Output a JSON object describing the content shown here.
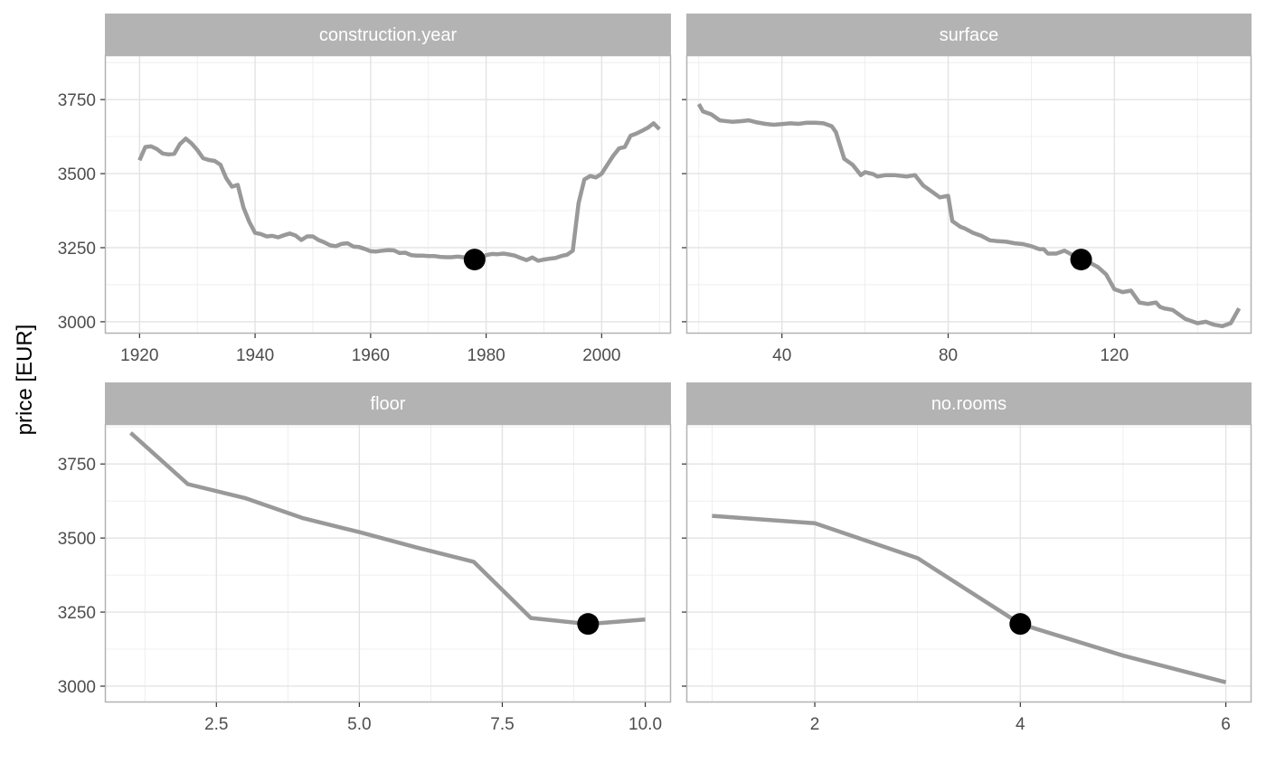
{
  "y_axis_label": "price [EUR]",
  "colors": {
    "line": "#999999",
    "point": "#000000",
    "strip": "#b3b3b3",
    "grid": "#ebebeb",
    "border": "#b3b3b3"
  },
  "chart_data": [
    {
      "type": "line",
      "title": "construction.year",
      "xlim": [
        1914,
        2012
      ],
      "ylim": [
        2960,
        3900
      ],
      "x_ticks": [
        1920,
        1940,
        1960,
        1980,
        2000
      ],
      "x_tick_labels": [
        "1920",
        "1940",
        "1960",
        "1980",
        "2000"
      ],
      "y_ticks": [
        3000,
        3250,
        3500,
        3750
      ],
      "y_tick_labels": [
        "3000",
        "3250",
        "3500",
        "3750"
      ],
      "x": [
        1920,
        1921,
        1922,
        1923,
        1924,
        1925,
        1926,
        1927,
        1928,
        1929,
        1930,
        1931,
        1932,
        1933,
        1934,
        1935,
        1936,
        1937,
        1938,
        1939,
        1940,
        1941,
        1942,
        1943,
        1944,
        1945,
        1946,
        1947,
        1948,
        1949,
        1950,
        1951,
        1952,
        1953,
        1954,
        1955,
        1956,
        1957,
        1958,
        1959,
        1960,
        1961,
        1962,
        1963,
        1964,
        1965,
        1966,
        1967,
        1968,
        1969,
        1970,
        1971,
        1972,
        1973,
        1974,
        1975,
        1976,
        1977,
        1978,
        1979,
        1980,
        1981,
        1982,
        1983,
        1984,
        1985,
        1986,
        1987,
        1988,
        1989,
        1990,
        1991,
        1992,
        1993,
        1994,
        1995,
        1996,
        1997,
        1998,
        1999,
        2000,
        2001,
        2002,
        2003,
        2004,
        2005,
        2006,
        2007,
        2008,
        2009,
        2010
      ],
      "values": [
        3545,
        3590,
        3592,
        3583,
        3568,
        3565,
        3567,
        3600,
        3618,
        3602,
        3580,
        3552,
        3546,
        3543,
        3530,
        3485,
        3456,
        3462,
        3385,
        3337,
        3300,
        3296,
        3288,
        3290,
        3285,
        3292,
        3298,
        3291,
        3276,
        3288,
        3288,
        3276,
        3268,
        3258,
        3255,
        3263,
        3265,
        3254,
        3252,
        3246,
        3238,
        3237,
        3240,
        3242,
        3241,
        3232,
        3233,
        3225,
        3223,
        3223,
        3222,
        3222,
        3219,
        3218,
        3218,
        3220,
        3218,
        3216,
        3214,
        3215,
        3225,
        3229,
        3228,
        3230,
        3227,
        3223,
        3215,
        3208,
        3217,
        3206,
        3210,
        3213,
        3215,
        3222,
        3226,
        3240,
        3400,
        3480,
        3492,
        3487,
        3500,
        3530,
        3560,
        3585,
        3590,
        3628,
        3635,
        3645,
        3655,
        3670,
        3650
      ],
      "point": {
        "x": 1978,
        "y": 3210
      }
    },
    {
      "type": "line",
      "title": "surface",
      "xlim": [
        17,
        153
      ],
      "ylim": [
        2960,
        3900
      ],
      "x_ticks": [
        40,
        80,
        120
      ],
      "x_tick_labels": [
        "40",
        "80",
        "120"
      ],
      "y_ticks": [
        3000,
        3250,
        3500,
        3750
      ],
      "y_tick_labels": [
        "",
        "",
        "",
        ""
      ],
      "x": [
        20,
        21,
        23,
        25,
        26,
        28,
        30,
        32,
        34,
        36,
        38,
        40,
        42,
        44,
        46,
        48,
        50,
        52,
        53,
        55,
        57,
        59,
        60,
        62,
        63,
        65,
        67,
        70,
        72,
        74,
        76,
        78,
        80,
        81,
        82,
        83,
        84,
        86,
        88,
        90,
        92,
        94,
        96,
        98,
        100,
        101,
        102,
        103,
        104,
        106,
        108,
        110,
        112,
        114,
        116,
        118,
        120,
        122,
        124,
        126,
        128,
        130,
        131,
        132,
        134,
        136,
        137,
        138,
        140,
        142,
        144,
        146,
        148,
        150
      ],
      "values": [
        3735,
        3710,
        3700,
        3680,
        3678,
        3675,
        3677,
        3680,
        3673,
        3668,
        3665,
        3667,
        3670,
        3668,
        3672,
        3672,
        3670,
        3660,
        3640,
        3550,
        3530,
        3495,
        3505,
        3498,
        3490,
        3495,
        3495,
        3490,
        3495,
        3460,
        3440,
        3420,
        3425,
        3340,
        3330,
        3320,
        3315,
        3300,
        3290,
        3275,
        3272,
        3270,
        3265,
        3262,
        3255,
        3250,
        3245,
        3245,
        3230,
        3230,
        3240,
        3225,
        3210,
        3200,
        3185,
        3160,
        3110,
        3100,
        3105,
        3065,
        3060,
        3065,
        3050,
        3045,
        3040,
        3020,
        3010,
        3005,
        2995,
        3000,
        2990,
        2985,
        2995,
        3045
      ],
      "point": {
        "x": 112,
        "y": 3210
      }
    },
    {
      "type": "line",
      "title": "floor",
      "xlim": [
        0.55,
        10.45
      ],
      "ylim": [
        2945,
        3885
      ],
      "x_ticks": [
        2.5,
        5.0,
        7.5,
        10.0
      ],
      "x_tick_labels": [
        "2.5",
        "5.0",
        "7.5",
        "10.0"
      ],
      "y_ticks": [
        3000,
        3250,
        3500,
        3750
      ],
      "y_tick_labels": [
        "3000",
        "3250",
        "3500",
        "3750"
      ],
      "x": [
        1,
        2,
        3,
        4,
        5,
        6,
        7,
        8,
        9,
        10
      ],
      "values": [
        3855,
        3682,
        3635,
        3568,
        3520,
        3468,
        3420,
        3230,
        3210,
        3225
      ],
      "point": {
        "x": 9,
        "y": 3210
      }
    },
    {
      "type": "line",
      "title": "no.rooms",
      "xlim": [
        0.75,
        6.25
      ],
      "ylim": [
        2945,
        3885
      ],
      "x_ticks": [
        2,
        4,
        6
      ],
      "x_tick_labels": [
        "2",
        "4",
        "6"
      ],
      "y_ticks": [
        3000,
        3250,
        3500,
        3750
      ],
      "y_tick_labels": [
        "",
        "",
        "",
        ""
      ],
      "x": [
        1,
        2,
        3,
        4,
        5,
        6
      ],
      "values": [
        3575,
        3550,
        3432,
        3210,
        3103,
        3013
      ],
      "point": {
        "x": 4,
        "y": 3210
      }
    }
  ]
}
